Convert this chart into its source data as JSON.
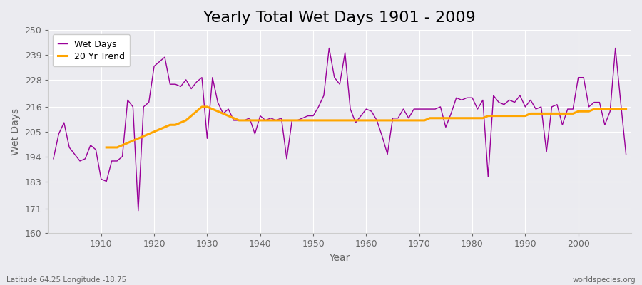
{
  "title": "Yearly Total Wet Days 1901 - 2009",
  "xlabel": "Year",
  "ylabel": "Wet Days",
  "years": [
    1901,
    1902,
    1903,
    1904,
    1905,
    1906,
    1907,
    1908,
    1909,
    1910,
    1911,
    1912,
    1913,
    1914,
    1915,
    1916,
    1917,
    1918,
    1919,
    1920,
    1921,
    1922,
    1923,
    1924,
    1925,
    1926,
    1927,
    1928,
    1929,
    1930,
    1931,
    1932,
    1933,
    1934,
    1935,
    1936,
    1937,
    1938,
    1939,
    1940,
    1941,
    1942,
    1943,
    1944,
    1945,
    1946,
    1947,
    1948,
    1949,
    1950,
    1951,
    1952,
    1953,
    1954,
    1955,
    1956,
    1957,
    1958,
    1959,
    1960,
    1961,
    1962,
    1963,
    1964,
    1965,
    1966,
    1967,
    1968,
    1969,
    1970,
    1971,
    1972,
    1973,
    1974,
    1975,
    1976,
    1977,
    1978,
    1979,
    1980,
    1981,
    1982,
    1983,
    1984,
    1985,
    1986,
    1987,
    1988,
    1989,
    1990,
    1991,
    1992,
    1993,
    1994,
    1995,
    1996,
    1997,
    1998,
    1999,
    2000,
    2001,
    2002,
    2003,
    2004,
    2005,
    2006,
    2007,
    2008,
    2009
  ],
  "wet_days": [
    193,
    204,
    209,
    198,
    195,
    192,
    193,
    199,
    197,
    184,
    183,
    192,
    192,
    194,
    219,
    216,
    170,
    216,
    218,
    234,
    236,
    238,
    226,
    226,
    225,
    228,
    224,
    227,
    229,
    202,
    229,
    218,
    213,
    215,
    210,
    210,
    210,
    211,
    204,
    212,
    210,
    211,
    210,
    211,
    193,
    210,
    210,
    211,
    212,
    212,
    216,
    221,
    242,
    229,
    226,
    240,
    215,
    209,
    212,
    215,
    214,
    210,
    203,
    195,
    211,
    211,
    215,
    211,
    215,
    215,
    215,
    215,
    215,
    216,
    207,
    213,
    220,
    219,
    220,
    220,
    215,
    219,
    185,
    221,
    218,
    217,
    219,
    218,
    221,
    216,
    219,
    215,
    216,
    196,
    216,
    217,
    208,
    215,
    215,
    229,
    229,
    216,
    218,
    218,
    208,
    214,
    242,
    218,
    195
  ],
  "trend_years": [
    1911,
    1912,
    1913,
    1914,
    1915,
    1916,
    1917,
    1918,
    1919,
    1920,
    1921,
    1922,
    1923,
    1924,
    1925,
    1926,
    1927,
    1928,
    1929,
    1930,
    1931,
    1932,
    1933,
    1934,
    1935,
    1936,
    1937,
    1938,
    1939,
    1940,
    1941,
    1942,
    1943,
    1944,
    1945,
    1946,
    1947,
    1948,
    1949,
    1950,
    1951,
    1952,
    1953,
    1954,
    1955,
    1956,
    1957,
    1958,
    1959,
    1960,
    1961,
    1962,
    1963,
    1964,
    1965,
    1966,
    1967,
    1968,
    1969,
    1970,
    1971,
    1972,
    1973,
    1974,
    1975,
    1976,
    1977,
    1978,
    1979,
    1980,
    1981,
    1982,
    1983,
    1984,
    1985,
    1986,
    1987,
    1988,
    1989,
    1990,
    1991,
    1992,
    1993,
    1994,
    1995,
    1996,
    1997,
    1998,
    1999,
    2000,
    2001,
    2002,
    2003,
    2004,
    2005,
    2006,
    2007,
    2008,
    2009
  ],
  "trend_values": [
    198,
    198,
    198,
    199,
    200,
    201,
    202,
    203,
    204,
    205,
    206,
    207,
    208,
    208,
    209,
    210,
    212,
    214,
    216,
    216,
    215,
    214,
    213,
    212,
    211,
    210,
    210,
    210,
    210,
    210,
    210,
    210,
    210,
    210,
    210,
    210,
    210,
    210,
    210,
    210,
    210,
    210,
    210,
    210,
    210,
    210,
    210,
    210,
    210,
    210,
    210,
    210,
    210,
    210,
    210,
    210,
    210,
    210,
    210,
    210,
    210,
    211,
    211,
    211,
    211,
    211,
    211,
    211,
    211,
    211,
    211,
    211,
    212,
    212,
    212,
    212,
    212,
    212,
    212,
    212,
    213,
    213,
    213,
    213,
    213,
    213,
    213,
    213,
    213,
    214,
    214,
    214,
    215,
    215,
    215,
    215,
    215,
    215,
    215
  ],
  "wet_days_color": "#990099",
  "trend_color": "#FFA500",
  "bg_color": "#ebebf0",
  "plot_bg_color": "#ebebf0",
  "ylim": [
    160,
    250
  ],
  "yticks": [
    160,
    171,
    183,
    194,
    205,
    216,
    228,
    239,
    250
  ],
  "xticks": [
    1910,
    1920,
    1930,
    1940,
    1950,
    1960,
    1970,
    1980,
    1990,
    2000
  ],
  "xlim": [
    1900,
    2010
  ],
  "title_fontsize": 16,
  "axis_label_fontsize": 10,
  "tick_fontsize": 9,
  "legend_fontsize": 9,
  "footer_left": "Latitude 64.25 Longitude -18.75",
  "footer_right": "worldspecies.org"
}
